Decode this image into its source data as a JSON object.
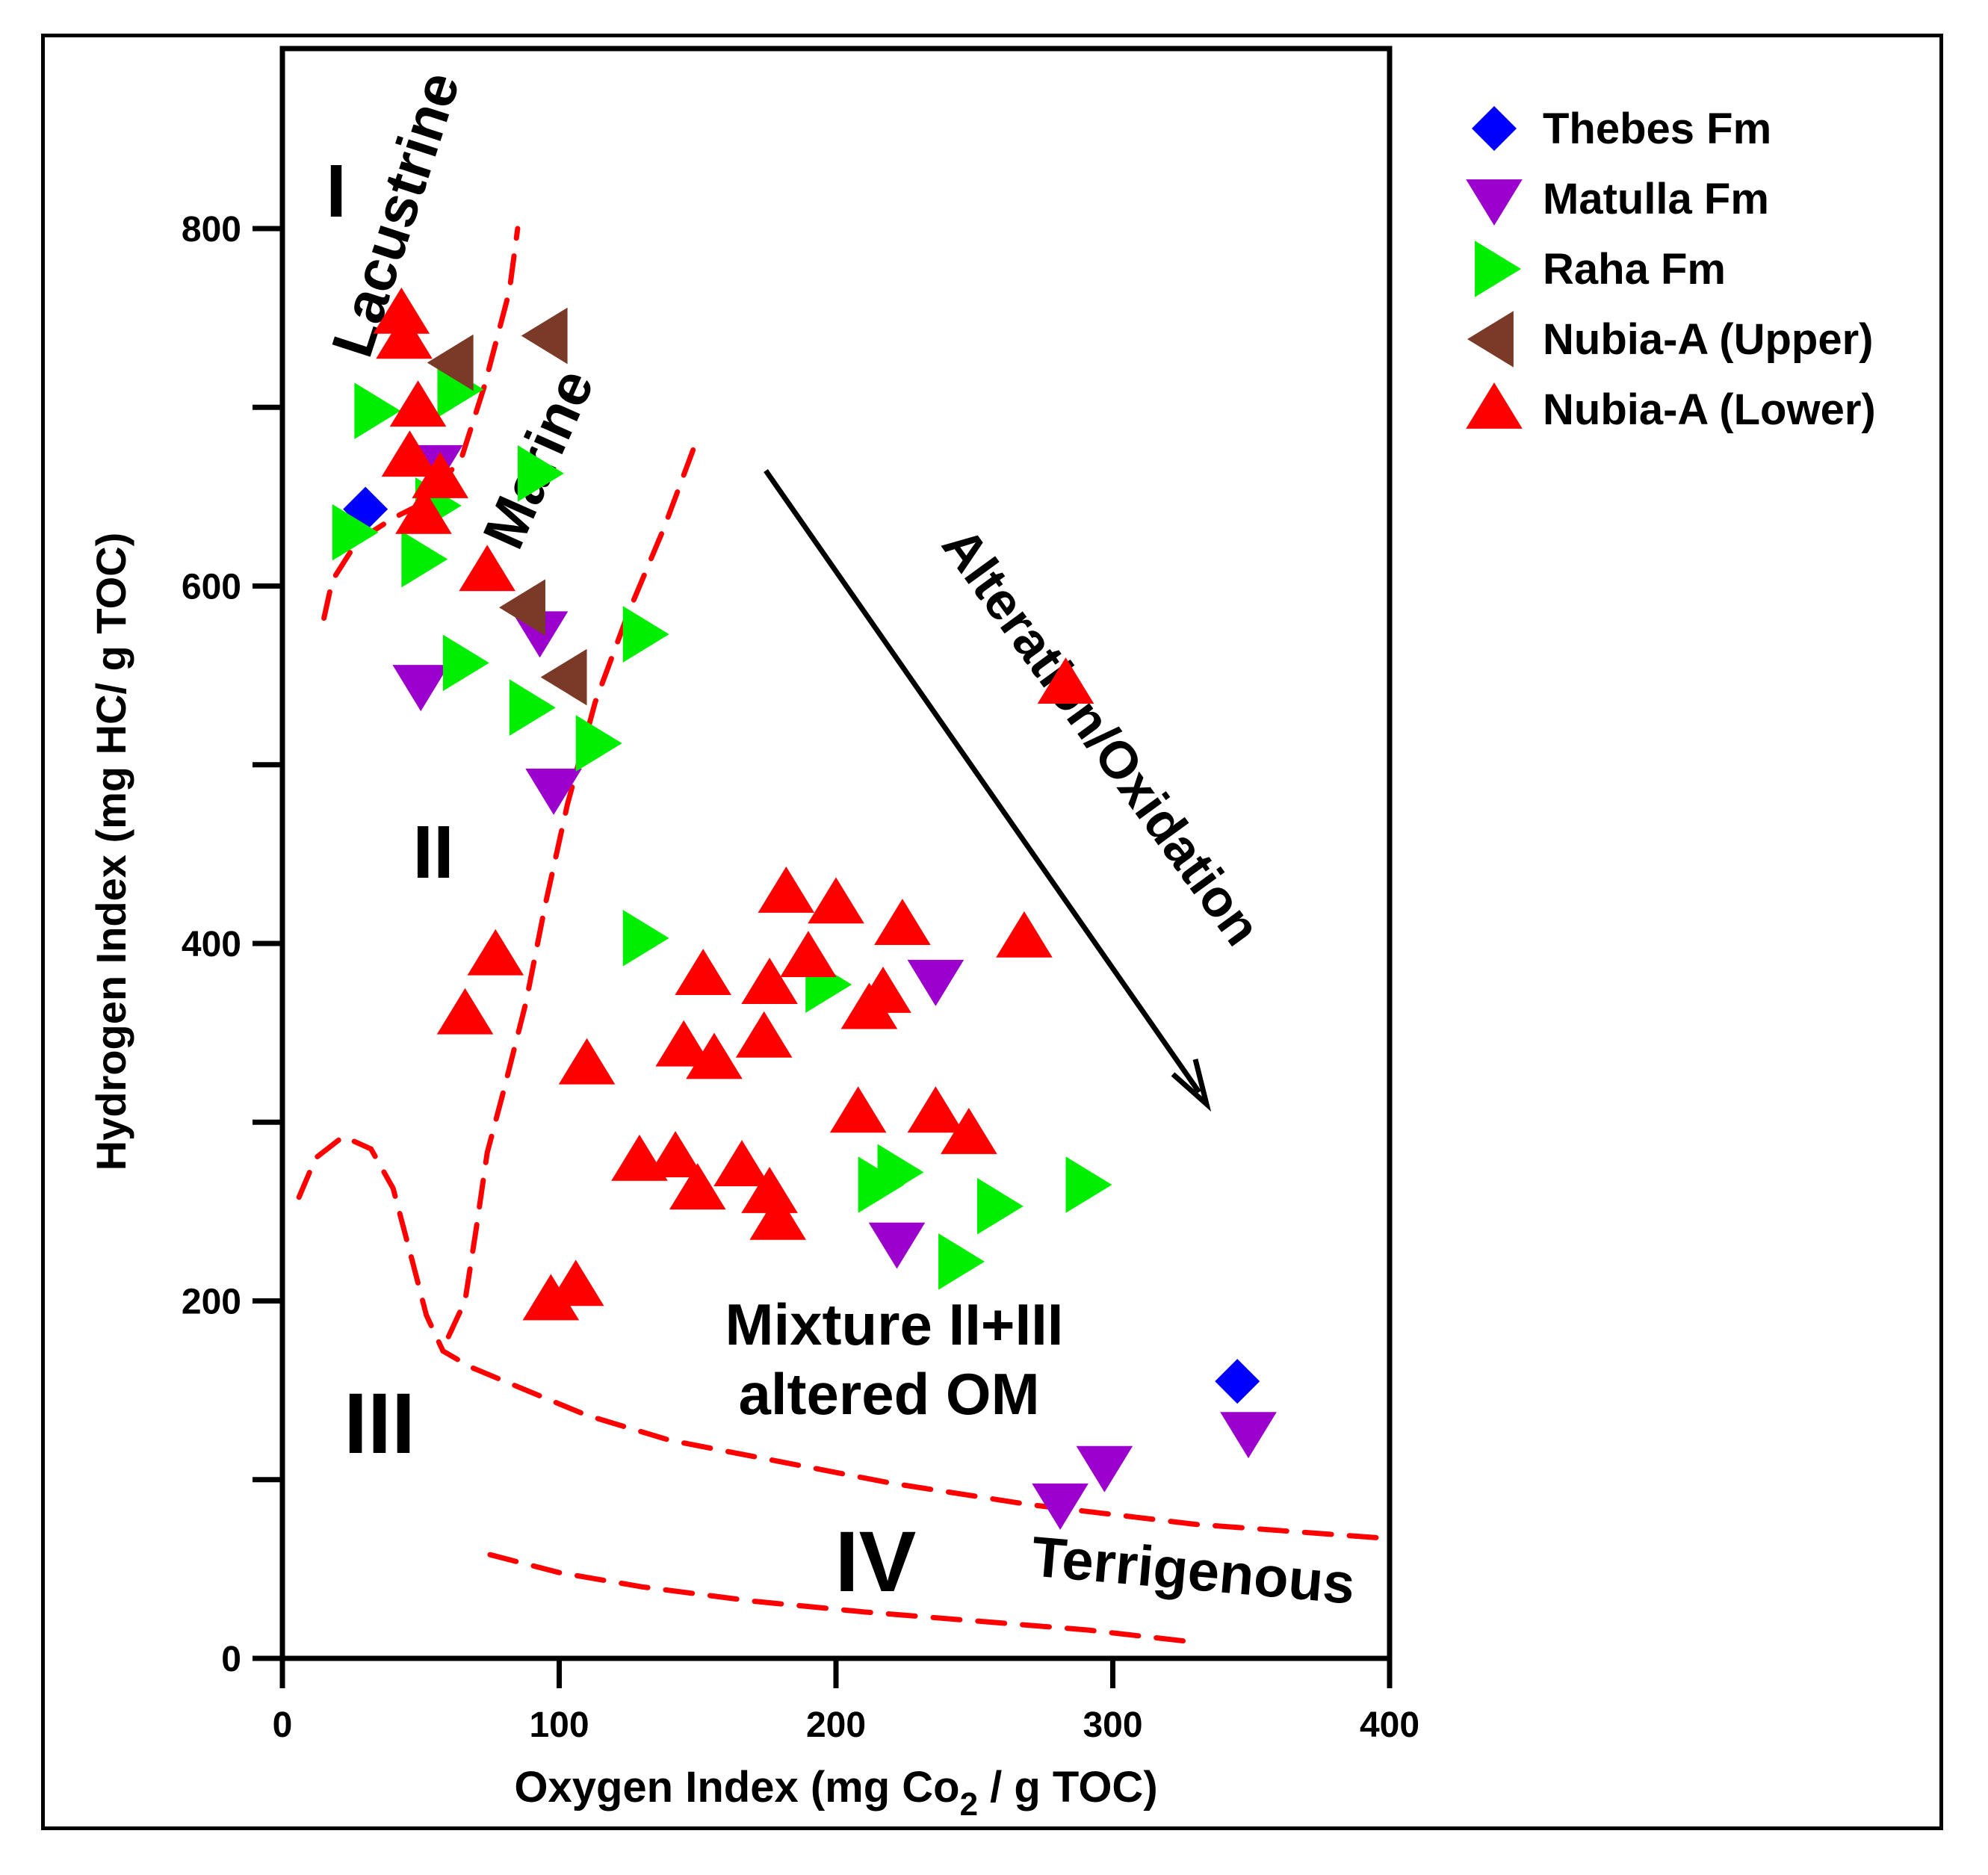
{
  "chart_data": {
    "type": "scatter",
    "title": "",
    "xlabel": "Oxygen Index (mg Co",
    "xlabel_sub": "2",
    "xlabel_tail": " / g TOC)",
    "ylabel": "Hydrogen Index (mg HC/ g TOC)",
    "xlim": [
      0,
      400
    ],
    "ylim": [
      0,
      900
    ],
    "x_ticks": [
      0,
      100,
      200,
      300,
      400
    ],
    "x_tick_labels": [
      "0",
      "100",
      "200",
      "300",
      "400"
    ],
    "y_ticks": [
      0,
      200,
      400,
      600,
      800
    ],
    "y_tick_labels": [
      "0",
      "200",
      "400",
      "600",
      "800"
    ],
    "y_minor_ticks": [
      100,
      300,
      500,
      700
    ],
    "grid": false,
    "legend_position": "top-right",
    "series": [
      {
        "name": "Thebes Fm",
        "marker": "diamond",
        "color": "#0000ff",
        "points": [
          [
            30,
            643
          ],
          [
            345,
            155
          ]
        ]
      },
      {
        "name": "Matulla Fm",
        "marker": "triangle-down",
        "color": "#9c00cc",
        "points": [
          [
            55,
            668
          ],
          [
            93,
            575
          ],
          [
            50,
            545
          ],
          [
            98,
            487
          ],
          [
            236,
            380
          ],
          [
            222,
            233
          ],
          [
            349,
            127
          ],
          [
            297,
            108
          ],
          [
            281,
            87
          ]
        ]
      },
      {
        "name": "Raha Fm",
        "marker": "triangle-right",
        "color": "#00ee00",
        "points": [
          [
            33,
            698
          ],
          [
            63,
            710
          ],
          [
            92,
            663
          ],
          [
            55,
            645
          ],
          [
            25,
            630
          ],
          [
            50,
            615
          ],
          [
            130,
            573
          ],
          [
            65,
            557
          ],
          [
            89,
            532
          ],
          [
            113,
            512
          ],
          [
            130,
            403
          ],
          [
            196,
            377
          ],
          [
            222,
            272
          ],
          [
            215,
            265
          ],
          [
            258,
            253
          ],
          [
            290,
            265
          ],
          [
            244,
            222
          ]
        ]
      },
      {
        "name": "Nubia-A (Upper)",
        "marker": "triangle-left",
        "color": "#7b3a28",
        "points": [
          [
            96,
            740
          ],
          [
            62,
            725
          ],
          [
            88,
            588
          ],
          [
            103,
            549
          ]
        ]
      },
      {
        "name": "Nubia-A (Lower)",
        "marker": "triangle-up",
        "color": "#ff0000",
        "points": [
          [
            43,
            752
          ],
          [
            44,
            738
          ],
          [
            49,
            700
          ],
          [
            46,
            672
          ],
          [
            57,
            660
          ],
          [
            51,
            640
          ],
          [
            74,
            608
          ],
          [
            283,
            545
          ],
          [
            182,
            428
          ],
          [
            200,
            422
          ],
          [
            224,
            410
          ],
          [
            268,
            403
          ],
          [
            77,
            393
          ],
          [
            190,
            392
          ],
          [
            152,
            382
          ],
          [
            176,
            377
          ],
          [
            217,
            372
          ],
          [
            212,
            363
          ],
          [
            66,
            360
          ],
          [
            174,
            347
          ],
          [
            145,
            342
          ],
          [
            156,
            335
          ],
          [
            110,
            332
          ],
          [
            208,
            305
          ],
          [
            236,
            305
          ],
          [
            248,
            293
          ],
          [
            129,
            278
          ],
          [
            142,
            280
          ],
          [
            166,
            275
          ],
          [
            176,
            260
          ],
          [
            150,
            262
          ],
          [
            179,
            245
          ],
          [
            97,
            200
          ],
          [
            106,
            208
          ]
        ]
      }
    ],
    "annotations": {
      "region_I": "I",
      "region_II": "II",
      "region_III": "III",
      "region_IV": "IV",
      "lacustrine": "Lacustrine",
      "marine": "Marine",
      "terrigenous": "Terrigenous",
      "arrow_label": "Alteration/Oxidation",
      "mixture_line1": "Mixture II+III",
      "mixture_line2": "altered OM"
    },
    "boundary_color": "#ff0000",
    "boundaries": [
      [
        [
          15,
          582
        ],
        [
          18,
          603
        ],
        [
          27,
          625
        ],
        [
          40,
          638
        ],
        [
          53,
          648
        ],
        [
          65,
          673
        ],
        [
          73,
          712
        ],
        [
          82,
          765
        ],
        [
          85,
          800
        ]
      ],
      [
        [
          60,
          180
        ],
        [
          66,
          200
        ],
        [
          70,
          240
        ],
        [
          74,
          283
        ],
        [
          80,
          318
        ],
        [
          88,
          367
        ],
        [
          95,
          422
        ],
        [
          103,
          478
        ],
        [
          113,
          535
        ],
        [
          125,
          585
        ],
        [
          138,
          633
        ],
        [
          150,
          683
        ]
      ],
      [
        [
          6,
          258
        ],
        [
          12,
          280
        ],
        [
          22,
          292
        ],
        [
          32,
          285
        ],
        [
          40,
          263
        ],
        [
          47,
          222
        ],
        [
          52,
          192
        ],
        [
          58,
          172
        ],
        [
          68,
          163
        ],
        [
          85,
          152
        ],
        [
          110,
          136
        ],
        [
          140,
          122
        ],
        [
          180,
          110
        ],
        [
          220,
          98
        ],
        [
          270,
          86
        ],
        [
          330,
          75
        ],
        [
          400,
          67
        ]
      ],
      [
        [
          75,
          58
        ],
        [
          100,
          48
        ],
        [
          130,
          40
        ],
        [
          170,
          32
        ],
        [
          210,
          26
        ],
        [
          250,
          21
        ],
        [
          290,
          16
        ],
        [
          330,
          9
        ]
      ]
    ]
  }
}
